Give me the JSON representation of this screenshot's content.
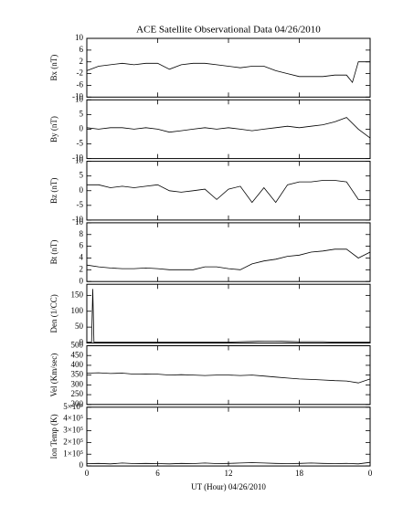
{
  "chart_data": [
    {
      "type": "line",
      "title": "ACE Satellite Observational Data  04/26/2010",
      "ylabel": "Bx (nT)",
      "x": [
        0,
        1,
        2,
        3,
        4,
        5,
        6,
        7,
        8,
        9,
        10,
        11,
        12,
        13,
        14,
        15,
        16,
        17,
        18,
        19,
        20,
        21,
        22,
        22.5,
        23,
        24
      ],
      "values": [
        -1,
        0.5,
        1,
        1.5,
        1,
        1.5,
        1.5,
        -0.5,
        1,
        1.5,
        1.5,
        1,
        0.5,
        0,
        0.5,
        0.5,
        -1,
        -2,
        -3,
        -3,
        -3,
        -2.5,
        -2.5,
        -5,
        2,
        2
      ],
      "ylim": [
        -10,
        10
      ],
      "yticks": [
        -10,
        -6,
        -2,
        2,
        6,
        10
      ],
      "color": "#000000"
    },
    {
      "type": "line",
      "ylabel": "By (nT)",
      "x": [
        0,
        1,
        2,
        3,
        4,
        5,
        6,
        7,
        8,
        9,
        10,
        11,
        12,
        13,
        14,
        15,
        16,
        17,
        18,
        19,
        20,
        21,
        22,
        23,
        24
      ],
      "values": [
        0.5,
        0,
        0.5,
        0.5,
        0,
        0.5,
        0,
        -1,
        -0.5,
        0,
        0.5,
        0,
        0.5,
        0,
        -0.5,
        0,
        0.5,
        1,
        0.5,
        1,
        1.5,
        2.5,
        4,
        0,
        -3
      ],
      "ylim": [
        -10,
        10
      ],
      "yticks": [
        -10,
        -5,
        0,
        5,
        10
      ],
      "color": "#000000"
    },
    {
      "type": "line",
      "ylabel": "Bz (nT)",
      "x": [
        0,
        1,
        2,
        3,
        4,
        5,
        6,
        7,
        8,
        9,
        10,
        11,
        12,
        13,
        14,
        15,
        16,
        17,
        18,
        19,
        20,
        21,
        22,
        23,
        24
      ],
      "values": [
        2,
        2,
        1,
        1.5,
        1,
        1.5,
        2,
        0,
        -0.5,
        0,
        0.5,
        -3,
        0.5,
        1.5,
        -4,
        1,
        -4,
        2,
        3,
        3,
        3.5,
        3.5,
        3,
        -3,
        -3
      ],
      "ylim": [
        -10,
        10
      ],
      "yticks": [
        -10,
        -5,
        0,
        5,
        10
      ],
      "color": "#000000"
    },
    {
      "type": "line",
      "ylabel": "Bt (nT)",
      "x": [
        0,
        1,
        2,
        3,
        4,
        5,
        6,
        7,
        8,
        9,
        10,
        11,
        12,
        13,
        14,
        15,
        16,
        17,
        18,
        19,
        20,
        21,
        22,
        23,
        24
      ],
      "values": [
        2.8,
        2.5,
        2.3,
        2.2,
        2.2,
        2.3,
        2.2,
        2,
        2,
        2,
        2.5,
        2.5,
        2.2,
        2,
        3,
        3.5,
        3.8,
        4.3,
        4.5,
        5,
        5.2,
        5.5,
        5.5,
        4,
        5
      ],
      "ylim": [
        0,
        10
      ],
      "yticks": [
        0,
        2,
        4,
        6,
        8,
        10
      ],
      "color": "#000000"
    },
    {
      "type": "line",
      "ylabel": "Den (1/CC)",
      "x": [
        0,
        0.4,
        0.5,
        0.6,
        1,
        2,
        3,
        4,
        5,
        6,
        7,
        8,
        9,
        10,
        11,
        12,
        13,
        14,
        15,
        16,
        17,
        18,
        19,
        20,
        21,
        22,
        23,
        24
      ],
      "values": [
        3,
        3,
        170,
        3,
        3,
        3,
        3,
        3,
        3,
        3,
        3,
        3,
        3,
        3,
        3,
        3,
        4,
        5,
        6,
        6,
        5,
        4,
        4,
        4,
        3,
        3,
        3,
        3
      ],
      "ylim": [
        0,
        185
      ],
      "yticks": [
        0,
        50,
        100,
        150
      ],
      "color": "#000000"
    },
    {
      "type": "line",
      "ylabel": "Vel (Km/sec)",
      "x": [
        0,
        1,
        2,
        3,
        4,
        5,
        6,
        7,
        8,
        9,
        10,
        11,
        12,
        13,
        14,
        15,
        16,
        17,
        18,
        19,
        20,
        21,
        22,
        23,
        24
      ],
      "values": [
        360,
        362,
        358,
        360,
        355,
        356,
        355,
        350,
        352,
        350,
        348,
        350,
        350,
        348,
        350,
        345,
        340,
        335,
        330,
        328,
        325,
        322,
        320,
        310,
        330
      ],
      "ylim": [
        200,
        500
      ],
      "yticks": [
        200,
        250,
        300,
        350,
        400,
        450,
        500
      ],
      "color": "#000000"
    },
    {
      "type": "line",
      "ylabel": "Ion Temp (K)",
      "xlabel": "UT (Hour)  04/26/2010",
      "x": [
        0,
        1,
        2,
        3,
        4,
        5,
        6,
        7,
        8,
        9,
        10,
        11,
        12,
        13,
        14,
        15,
        16,
        17,
        18,
        19,
        20,
        21,
        22,
        23,
        24
      ],
      "values": [
        20000,
        22000,
        18000,
        25000,
        20000,
        22000,
        20000,
        18000,
        22000,
        20000,
        25000,
        20000,
        22000,
        25000,
        28000,
        25000,
        22000,
        20000,
        22000,
        25000,
        22000,
        20000,
        22000,
        18000,
        30000
      ],
      "ylim": [
        0,
        500000
      ],
      "yticks": [
        0,
        {
          "value": 100000,
          "label": "1×10⁵"
        },
        {
          "value": 200000,
          "label": "2×10⁵"
        },
        {
          "value": 300000,
          "label": "3×10⁵"
        },
        {
          "value": 400000,
          "label": "4×10⁵"
        },
        {
          "value": 500000,
          "label": "5×10⁵"
        }
      ],
      "xlim": [
        0,
        24
      ],
      "xticks": [
        0,
        6,
        12,
        18,
        {
          "value": 24,
          "label": "0"
        }
      ],
      "color": "#000000"
    }
  ]
}
